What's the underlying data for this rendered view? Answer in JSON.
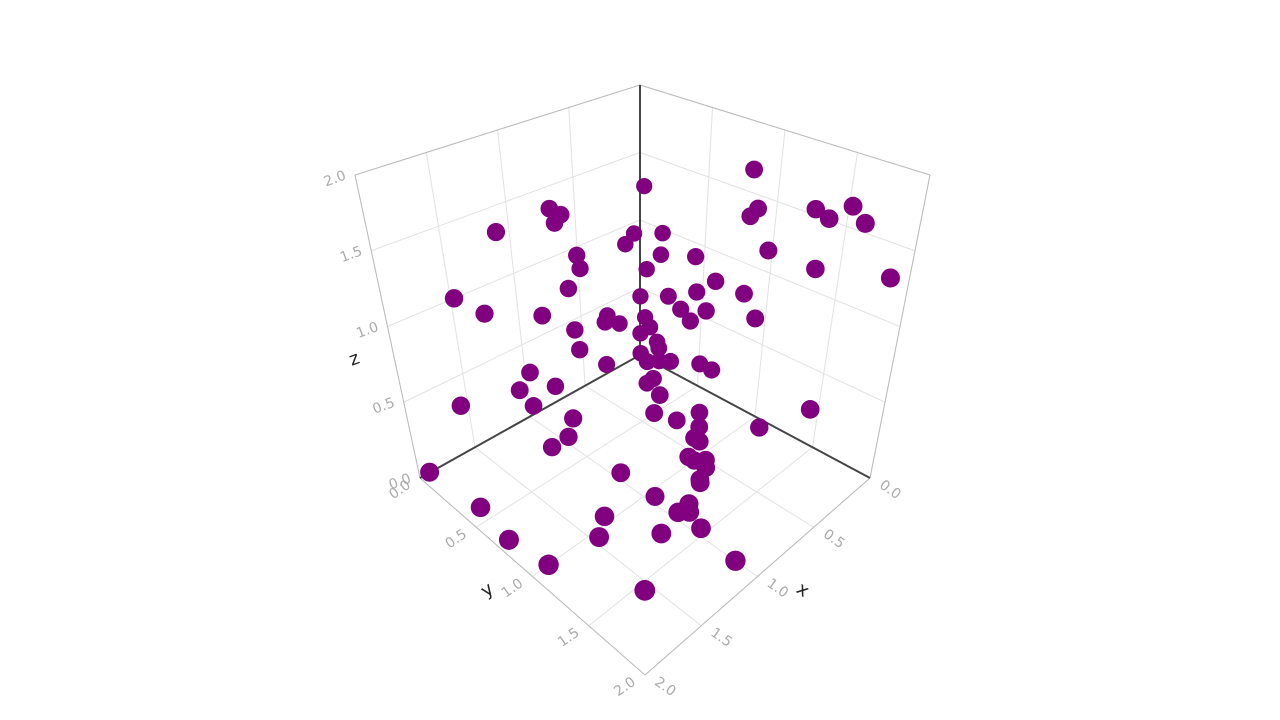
{
  "chart_data": {
    "type": "scatter3d",
    "color": "#800080",
    "x_label": "x",
    "y_label": "y",
    "z_label": "z",
    "xlim": [
      0,
      2
    ],
    "ylim": [
      0,
      2
    ],
    "zlim": [
      0,
      2
    ],
    "xticks": [
      {
        "value": 0,
        "label": "0.0"
      },
      {
        "value": 0.5,
        "label": "0.5"
      },
      {
        "value": 1,
        "label": "1.0"
      },
      {
        "value": 1.5,
        "label": "1.5"
      },
      {
        "value": 2,
        "label": "2.0"
      }
    ],
    "yticks": [
      {
        "value": 0,
        "label": "0.0"
      },
      {
        "value": 0.5,
        "label": "0.5"
      },
      {
        "value": 1,
        "label": "1.0"
      },
      {
        "value": 1.5,
        "label": "1.5"
      },
      {
        "value": 2,
        "label": "2.0"
      }
    ],
    "zticks": [
      {
        "value": 0,
        "label": "0.0"
      },
      {
        "value": 0.5,
        "label": "0.5"
      },
      {
        "value": 1,
        "label": "1.0"
      },
      {
        "value": 1.5,
        "label": "1.5"
      },
      {
        "value": 2,
        "label": "2.0"
      }
    ],
    "grid": true,
    "x": [
      0.2,
      0.2,
      0.2,
      0.2,
      0.2,
      0.2,
      0.2,
      0.1,
      0.2,
      0.2,
      0.2,
      0.2,
      0.2,
      0.2,
      0.2,
      0.2,
      0.2,
      0.2,
      0.2,
      0.1,
      0.1,
      0.1,
      0.05,
      0.1,
      0.1,
      0.1,
      0.1,
      0.2,
      0.3,
      0.5,
      0.6,
      0.6,
      0.7,
      1.0,
      0.88,
      1.28,
      0.8,
      0.85,
      1.56,
      1.35,
      1.0,
      0.7,
      0.68,
      0.78,
      0.5,
      0.72,
      0.75,
      0.38,
      0.28,
      0.22,
      0.15,
      0.06,
      0.1,
      0.15,
      0.5,
      1.05,
      1.15,
      0.85,
      1.05,
      1.6,
      1.95,
      0.25,
      1.9,
      1.95,
      1.9,
      1.5,
      1.2,
      1.6,
      1.05,
      1.0,
      0.95,
      1.35,
      1.05,
      1.2,
      1.1,
      1.05,
      0.6,
      0.5,
      0.35,
      0.3,
      0.2,
      0.2,
      0.1,
      0.1,
      0.3,
      0.35,
      0.45,
      0.45,
      0.6,
      0.55,
      0.65,
      0.95,
      0.85
    ],
    "y": [
      1.0,
      1.05,
      1.0,
      1.7,
      1.8,
      1.45,
      1.55,
      1.95,
      1.5,
      1.15,
      0.62,
      0.78,
      1.0,
      1.1,
      0.72,
      0.6,
      0.52,
      0.64,
      0.42,
      0.26,
      0.27,
      0.15,
      0.08,
      0.1,
      0.18,
      0.24,
      0.26,
      1.6,
      1.3,
      0.95,
      1.0,
      1.15,
      1.2,
      1.3,
      0.2,
      0.2,
      0.2,
      0.2,
      0.1,
      0.1,
      0.2,
      0.2,
      0.2,
      0.2,
      0.2,
      0.2,
      0.2,
      0.1,
      0.1,
      0.1,
      0.1,
      0.1,
      0.1,
      0.15,
      0.2,
      0.1,
      0.1,
      0.1,
      0.1,
      0.05,
      0.05,
      0.3,
      0.45,
      0.75,
      1.05,
      1.1,
      1.35,
      1.6,
      1.85,
      1.5,
      1.35,
      1.0,
      0.85,
      0.4,
      0.45,
      0.45,
      0.7,
      0.65,
      0.45,
      0.35,
      0.35,
      0.45,
      0.6,
      0.7,
      0.8,
      0.85,
      0.75,
      0.95,
      1.05,
      1.1,
      1.15,
      1.05,
      1.25
    ],
    "z": [
      1.8,
      1.55,
      1.48,
      1.78,
      1.7,
      1.68,
      1.65,
      1.35,
      1.3,
      1.3,
      1.06,
      0.95,
      0.95,
      0.82,
      0.72,
      0.6,
      0.65,
      0.82,
      0.7,
      0.89,
      1.05,
      0.74,
      1.3,
      0.52,
      0.33,
      0.25,
      0.12,
      0.41,
      0.22,
      0.1,
      0.05,
      0.05,
      0.03,
      0.05,
      1.49,
      1.47,
      1.42,
      1.38,
      1.08,
      0.9,
      0.8,
      1.1,
      1.0,
      0.9,
      0.55,
      0.45,
      0.6,
      0.5,
      0.4,
      0.95,
      1.0,
      0.35,
      0.25,
      0.15,
      0.25,
      0.38,
      0.3,
      0.2,
      0.15,
      0.35,
      0.05,
      0.05,
      0.05,
      0.05,
      0.05,
      0.05,
      0.05,
      0.05,
      0.05,
      0.05,
      0.05,
      0.05,
      0.1,
      0.1,
      0.15,
      0.25,
      0.2,
      0.25,
      0.2,
      0.25,
      0.3,
      0.25,
      0.25,
      0.25,
      0.1,
      0.05,
      0.1,
      0.05,
      0.05,
      0.05,
      0.0,
      0.0,
      0.0
    ]
  }
}
